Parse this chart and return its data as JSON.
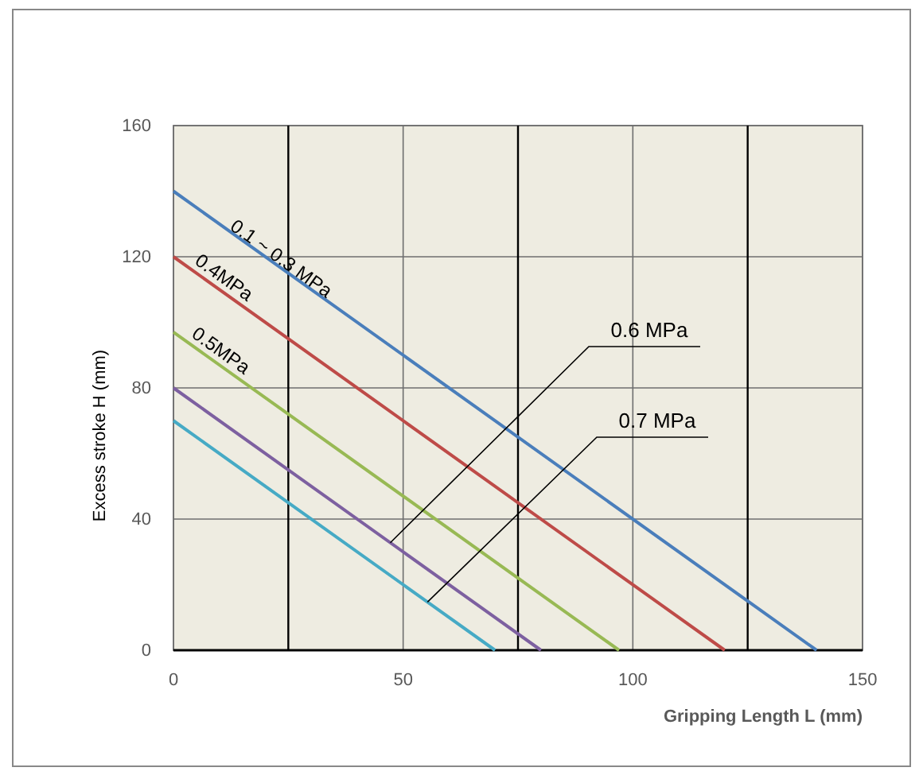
{
  "chart_data": {
    "type": "line",
    "xlabel": "Gripping Length L (mm)",
    "ylabel": "Excess stroke H (mm)",
    "xlim": [
      0,
      150
    ],
    "xticks": [
      0,
      50,
      100,
      150
    ],
    "ylim": [
      0,
      160
    ],
    "yticks": [
      0,
      40,
      80,
      120,
      160
    ],
    "grid": true,
    "marker": "none",
    "line_style": "solid",
    "ref_lines": [
      {
        "axis": "x",
        "value": 25,
        "label": null,
        "color": "#000000"
      },
      {
        "axis": "x",
        "value": 75,
        "label": null,
        "color": "#000000"
      },
      {
        "axis": "x",
        "value": 125,
        "label": null,
        "color": "#000000"
      }
    ],
    "series": [
      {
        "name": "0.1 ~ 0.3 MPa",
        "color": "#4a7ebb",
        "x": [
          0,
          140
        ],
        "values": [
          140,
          0
        ]
      },
      {
        "name": "0.4MPa",
        "color": "#be4b48",
        "x": [
          0,
          120
        ],
        "values": [
          120,
          0
        ]
      },
      {
        "name": "0.5MPa",
        "color": "#98b954",
        "x": [
          0,
          97
        ],
        "values": [
          97,
          0
        ]
      },
      {
        "name": "0.6 MPa",
        "color": "#7d60a0",
        "x": [
          0,
          80
        ],
        "values": [
          80,
          0
        ]
      },
      {
        "name": "0.7 MPa",
        "color": "#46aac5",
        "x": [
          0,
          70
        ],
        "values": [
          70,
          0
        ]
      }
    ]
  }
}
